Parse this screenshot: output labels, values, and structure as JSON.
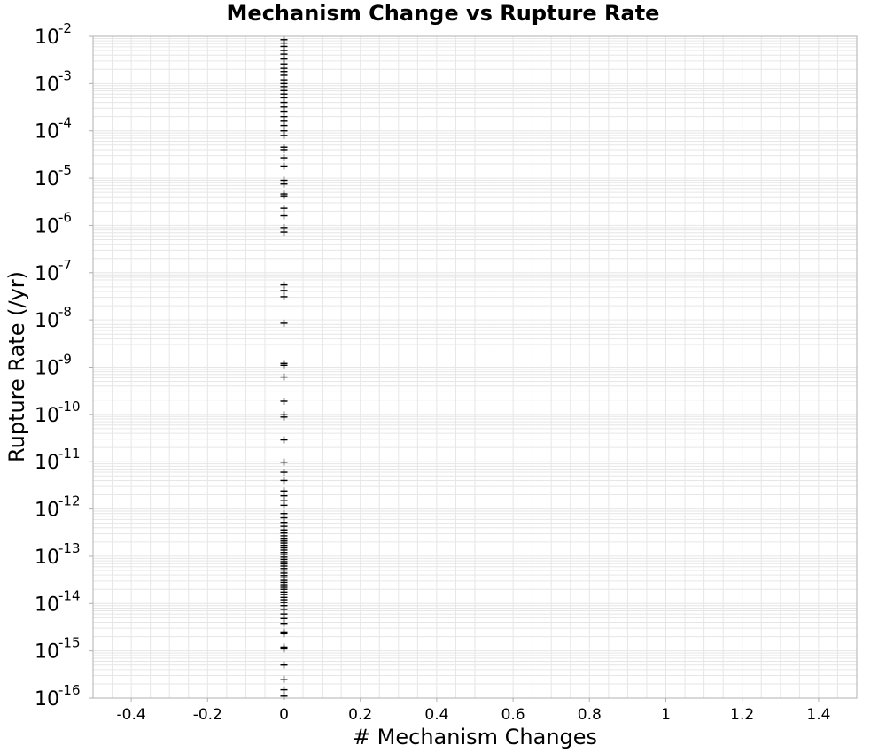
{
  "chart_data": {
    "type": "scatter",
    "title": "Mechanism Change vs Rupture Rate",
    "xlabel": "# Mechanism Changes",
    "ylabel": "Rupture Rate (/yr)",
    "xlim": [
      -0.5,
      1.5
    ],
    "ylim": [
      1e-16,
      0.01
    ],
    "yscale": "log",
    "grid": true,
    "marker": "+",
    "marker_color": "#000000",
    "frame_color": "#b0b0b0",
    "grid_color": "#e6e6e6",
    "xticks": [
      {
        "value": -0.4,
        "label": "-0.4"
      },
      {
        "value": -0.2,
        "label": "-0.2"
      },
      {
        "value": 0,
        "label": "0"
      },
      {
        "value": 0.2,
        "label": "0.2"
      },
      {
        "value": 0.4,
        "label": "0.4"
      },
      {
        "value": 0.6,
        "label": "0.6"
      },
      {
        "value": 0.8,
        "label": "0.8"
      },
      {
        "value": 1,
        "label": "1"
      },
      {
        "value": 1.2,
        "label": "1.2"
      },
      {
        "value": 1.4,
        "label": "1.4"
      }
    ],
    "yticks": [
      {
        "value": 0.01,
        "base": "10",
        "exp": "-2"
      },
      {
        "value": 0.001,
        "base": "10",
        "exp": "-3"
      },
      {
        "value": 0.0001,
        "base": "10",
        "exp": "-4"
      },
      {
        "value": 1e-05,
        "base": "10",
        "exp": "-5"
      },
      {
        "value": 1e-06,
        "base": "10",
        "exp": "-6"
      },
      {
        "value": 1e-07,
        "base": "10",
        "exp": "-7"
      },
      {
        "value": 1e-08,
        "base": "10",
        "exp": "-8"
      },
      {
        "value": 1e-09,
        "base": "10",
        "exp": "-9"
      },
      {
        "value": 1e-10,
        "base": "10",
        "exp": "-10"
      },
      {
        "value": 1e-11,
        "base": "10",
        "exp": "-11"
      },
      {
        "value": 1e-12,
        "base": "10",
        "exp": "-12"
      },
      {
        "value": 1e-13,
        "base": "10",
        "exp": "-13"
      },
      {
        "value": 1e-14,
        "base": "10",
        "exp": "-14"
      },
      {
        "value": 1e-15,
        "base": "10",
        "exp": "-15"
      },
      {
        "value": 1e-16,
        "base": "10",
        "exp": "-16"
      }
    ],
    "points": [
      {
        "x": 0,
        "y": 0.0085
      },
      {
        "x": 0,
        "y": 0.0072
      },
      {
        "x": 0,
        "y": 0.0061
      },
      {
        "x": 0,
        "y": 0.005
      },
      {
        "x": 0,
        "y": 0.0042
      },
      {
        "x": 0,
        "y": 0.0033
      },
      {
        "x": 0,
        "y": 0.0026
      },
      {
        "x": 0,
        "y": 0.0021
      },
      {
        "x": 0,
        "y": 0.0018
      },
      {
        "x": 0,
        "y": 0.0015
      },
      {
        "x": 0,
        "y": 0.0012
      },
      {
        "x": 0,
        "y": 0.001
      },
      {
        "x": 0,
        "y": 0.00086
      },
      {
        "x": 0,
        "y": 0.00071
      },
      {
        "x": 0,
        "y": 0.0006
      },
      {
        "x": 0,
        "y": 0.0005
      },
      {
        "x": 0,
        "y": 0.0004
      },
      {
        "x": 0,
        "y": 0.00032
      },
      {
        "x": 0,
        "y": 0.00026
      },
      {
        "x": 0,
        "y": 0.0002
      },
      {
        "x": 0,
        "y": 0.00016
      },
      {
        "x": 0,
        "y": 0.00013
      },
      {
        "x": 0,
        "y": 0.0001
      },
      {
        "x": 0,
        "y": 8e-05
      },
      {
        "x": 0,
        "y": 4.5e-05
      },
      {
        "x": 0,
        "y": 4e-05
      },
      {
        "x": 0,
        "y": 2.7e-05
      },
      {
        "x": 0,
        "y": 1.8e-05
      },
      {
        "x": 0,
        "y": 9e-06
      },
      {
        "x": 0,
        "y": 7.5e-06
      },
      {
        "x": 0,
        "y": 4.6e-06
      },
      {
        "x": 0,
        "y": 4.2e-06
      },
      {
        "x": 0,
        "y": 2.3e-06
      },
      {
        "x": 0,
        "y": 1.6e-06
      },
      {
        "x": 0,
        "y": 9e-07
      },
      {
        "x": 0,
        "y": 7.2e-07
      },
      {
        "x": 0,
        "y": 5.5e-08
      },
      {
        "x": 0,
        "y": 4.2e-08
      },
      {
        "x": 0,
        "y": 3.1e-08
      },
      {
        "x": 0,
        "y": 8.5e-09
      },
      {
        "x": 0,
        "y": 1.2e-09
      },
      {
        "x": 0,
        "y": 1.1e-09
      },
      {
        "x": 0,
        "y": 6.2e-10
      },
      {
        "x": 0,
        "y": 1.9e-10
      },
      {
        "x": 0,
        "y": 9.8e-11
      },
      {
        "x": 0,
        "y": 8.8e-11
      },
      {
        "x": 0,
        "y": 2.9e-11
      },
      {
        "x": 0,
        "y": 9.8e-12
      },
      {
        "x": 0,
        "y": 6e-12
      },
      {
        "x": 0,
        "y": 4e-12
      },
      {
        "x": 0,
        "y": 2.4e-12
      },
      {
        "x": 0,
        "y": 1.9e-12
      },
      {
        "x": 0,
        "y": 1.5e-12
      },
      {
        "x": 0,
        "y": 1.2e-12
      },
      {
        "x": 0,
        "y": 8e-13
      },
      {
        "x": 0,
        "y": 6.5e-13
      },
      {
        "x": 0,
        "y": 5.2e-13
      },
      {
        "x": 0,
        "y": 4.3e-13
      },
      {
        "x": 0,
        "y": 3.6e-13
      },
      {
        "x": 0,
        "y": 3.1e-13
      },
      {
        "x": 0,
        "y": 2.7e-13
      },
      {
        "x": 0,
        "y": 2.4e-13
      },
      {
        "x": 0,
        "y": 2.1e-13
      },
      {
        "x": 0,
        "y": 1.9e-13
      },
      {
        "x": 0,
        "y": 1.7e-13
      },
      {
        "x": 0,
        "y": 1.5e-13
      },
      {
        "x": 0,
        "y": 1.35e-13
      },
      {
        "x": 0,
        "y": 1.2e-13
      },
      {
        "x": 0,
        "y": 1.08e-13
      },
      {
        "x": 0,
        "y": 9.6e-14
      },
      {
        "x": 0,
        "y": 8.6e-14
      },
      {
        "x": 0,
        "y": 7.7e-14
      },
      {
        "x": 0,
        "y": 6.9e-14
      },
      {
        "x": 0,
        "y": 6.2e-14
      },
      {
        "x": 0,
        "y": 5.5e-14
      },
      {
        "x": 0,
        "y": 4.9e-14
      },
      {
        "x": 0,
        "y": 4.4e-14
      },
      {
        "x": 0,
        "y": 3.9e-14
      },
      {
        "x": 0,
        "y": 3.5e-14
      },
      {
        "x": 0,
        "y": 3.1e-14
      },
      {
        "x": 0,
        "y": 2.8e-14
      },
      {
        "x": 0,
        "y": 2.5e-14
      },
      {
        "x": 0,
        "y": 2.2e-14
      },
      {
        "x": 0,
        "y": 2e-14
      },
      {
        "x": 0,
        "y": 1.75e-14
      },
      {
        "x": 0,
        "y": 1.55e-14
      },
      {
        "x": 0,
        "y": 1.35e-14
      },
      {
        "x": 0,
        "y": 1.2e-14
      },
      {
        "x": 0,
        "y": 1.05e-14
      },
      {
        "x": 0,
        "y": 9e-15
      },
      {
        "x": 0,
        "y": 7.5e-15
      },
      {
        "x": 0,
        "y": 6e-15
      },
      {
        "x": 0,
        "y": 4.8e-15
      },
      {
        "x": 0,
        "y": 3.8e-15
      },
      {
        "x": 0,
        "y": 2.5e-15
      },
      {
        "x": 0,
        "y": 2.3e-15
      },
      {
        "x": 0,
        "y": 1.2e-15
      },
      {
        "x": 0,
        "y": 1.1e-15
      },
      {
        "x": 0,
        "y": 5e-16
      },
      {
        "x": 0,
        "y": 2.5e-16
      },
      {
        "x": 0,
        "y": 1.5e-16
      },
      {
        "x": 0,
        "y": 1.1e-16
      }
    ]
  }
}
